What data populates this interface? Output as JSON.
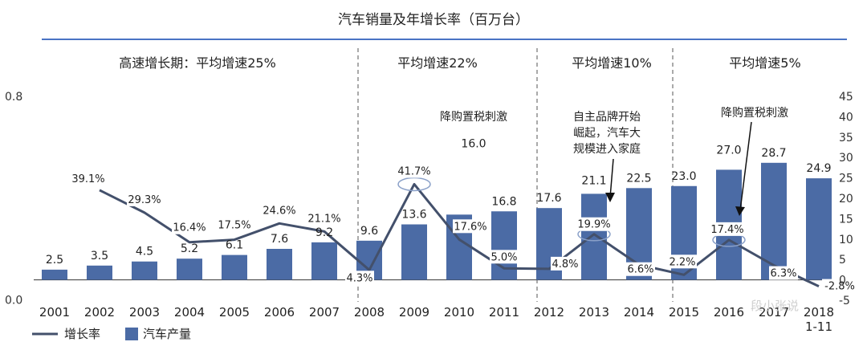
{
  "chart_data": {
    "type": "bar+line",
    "title": "汽车销量及年增长率（百万台）",
    "categories": [
      "2001",
      "2002",
      "2003",
      "2004",
      "2005",
      "2006",
      "2007",
      "2008",
      "2009",
      "2010",
      "2011",
      "2012",
      "2013",
      "2014",
      "2015",
      "2016",
      "2017",
      "2018\n1-11"
    ],
    "series": [
      {
        "name": "汽车产量",
        "type": "bar",
        "axis": "right",
        "values": [
          2.5,
          3.5,
          4.5,
          5.2,
          6.1,
          7.6,
          9.2,
          9.6,
          13.6,
          16.0,
          16.8,
          17.6,
          21.1,
          22.5,
          23.0,
          27.0,
          28.7,
          24.9
        ]
      },
      {
        "name": "增长率",
        "type": "line",
        "axis": "left",
        "values": [
          null,
          0.391,
          0.293,
          0.164,
          0.175,
          0.246,
          0.211,
          0.043,
          0.417,
          0.176,
          0.05,
          0.048,
          0.199,
          0.066,
          0.022,
          0.174,
          0.063,
          -0.028
        ]
      }
    ],
    "bar_labels": [
      "2.5",
      "3.5",
      "4.5",
      "5.2",
      "6.1",
      "7.6",
      "9.2",
      "9.6",
      "13.6",
      "16.0",
      "16.8",
      "17.6",
      "21.1",
      "22.5",
      "23.0",
      "27.0",
      "28.7",
      "24.9"
    ],
    "rate_labels": [
      "",
      "39.1%",
      "29.3%",
      "16.4%",
      "17.5%",
      "24.6%",
      "21.1%",
      "4.3%",
      "41.7%",
      "17.6%",
      "5.0%",
      "4.8%",
      "19.9%",
      "6.6%",
      "2.2%",
      "17.4%",
      "6.3%",
      "-2.8%"
    ],
    "left_axis": {
      "ticks": [
        "0.0",
        "0.8"
      ],
      "ylim": [
        0,
        0.8
      ]
    },
    "right_axis": {
      "ticks": [
        "-5",
        "0",
        "5",
        "10",
        "15",
        "20",
        "25",
        "30",
        "35",
        "40",
        "45"
      ],
      "ylim": [
        -5,
        45
      ]
    },
    "phases": [
      "高速增长期：平均增速25%",
      "平均增速22%",
      "平均增速10%",
      "平均增速5%"
    ],
    "annotations": [
      "降购置税刺激",
      "自主品牌开始\n崛起，汽车大\n规模进入家庭",
      "降购置税刺激"
    ],
    "legend": {
      "line": "增长率",
      "bar": "汽车产量"
    },
    "watermark": "段小张说",
    "colors": {
      "bar": "#4b6ba5",
      "line": "#43506b",
      "accent": "#4a73c4",
      "circle": "#8aa0c8"
    }
  }
}
